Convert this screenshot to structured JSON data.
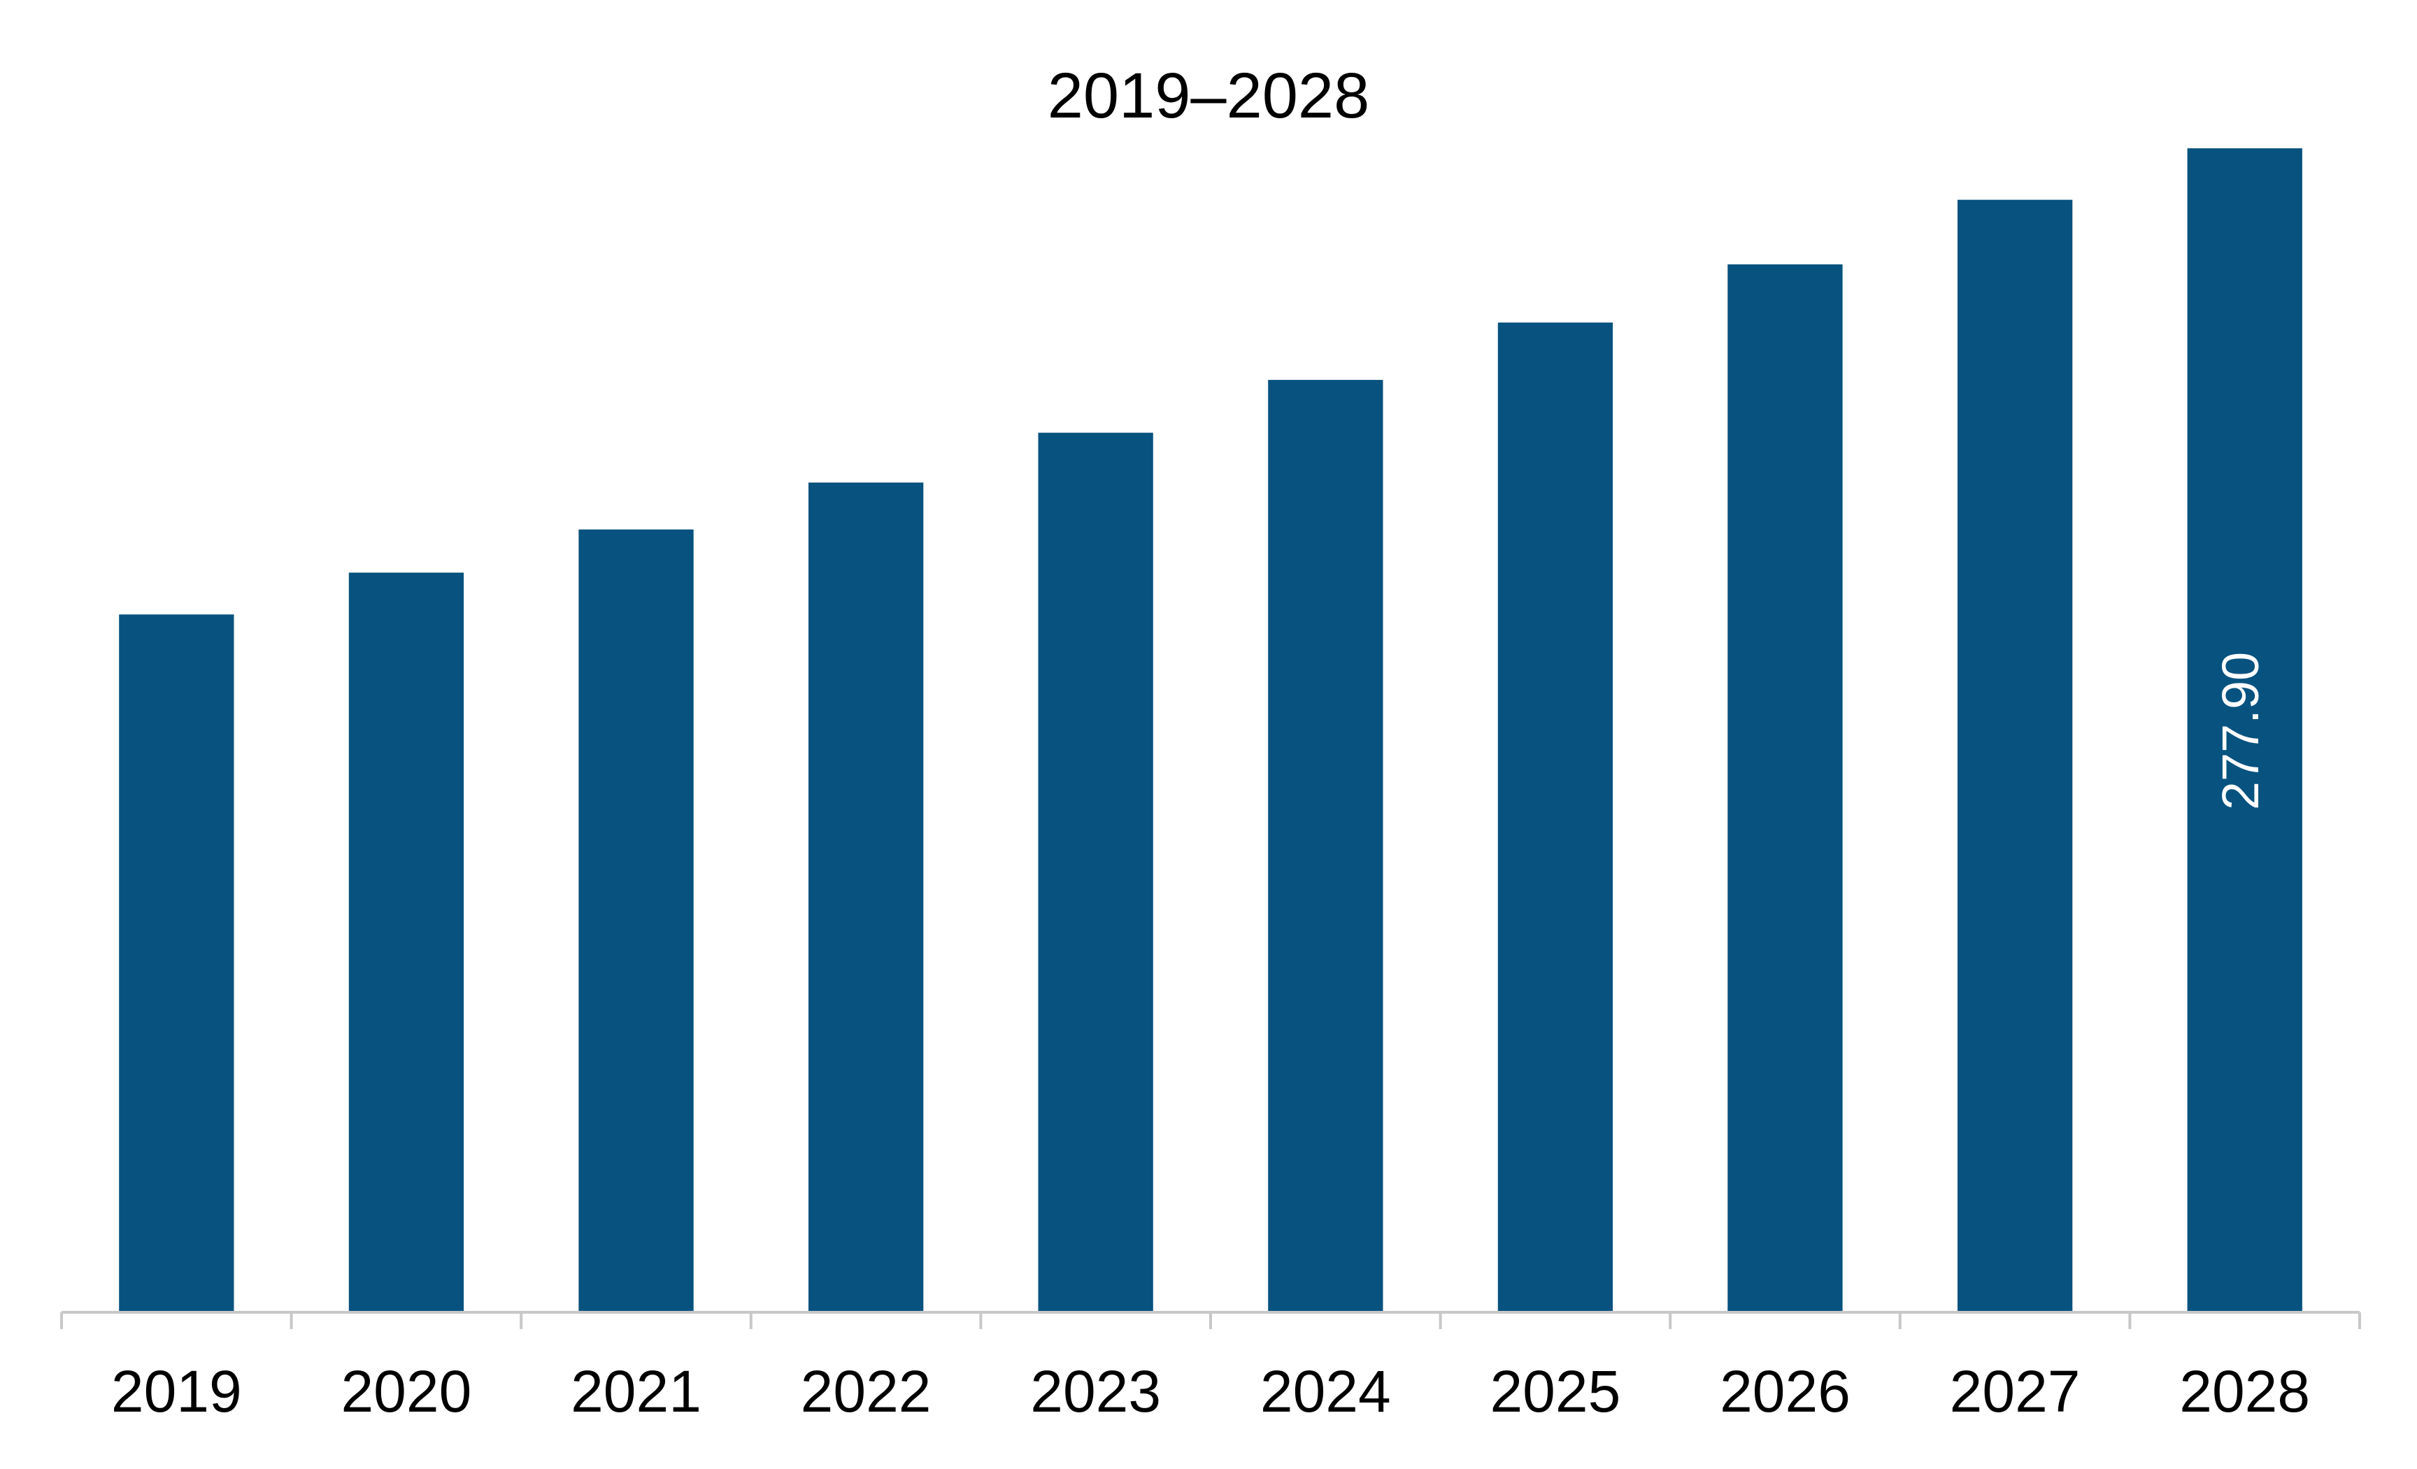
{
  "chart_data": {
    "type": "bar",
    "title": "2019–2028",
    "categories": [
      "2019",
      "2020",
      "2021",
      "2022",
      "2023",
      "2024",
      "2025",
      "2026",
      "2027",
      "2028"
    ],
    "values": [
      166.6,
      176.6,
      186.9,
      198.1,
      210.0,
      222.6,
      236.3,
      250.2,
      265.6,
      277.9
    ],
    "data_labels": [
      {
        "category": "2028",
        "text": "277.90",
        "orientation": "vertical"
      }
    ],
    "xlabel": "",
    "ylabel": "",
    "ylim": [
      0,
      277.9
    ],
    "grid": false,
    "legend": "none",
    "bar_color": "#07527F",
    "axis_color": "#C8C8C8"
  }
}
